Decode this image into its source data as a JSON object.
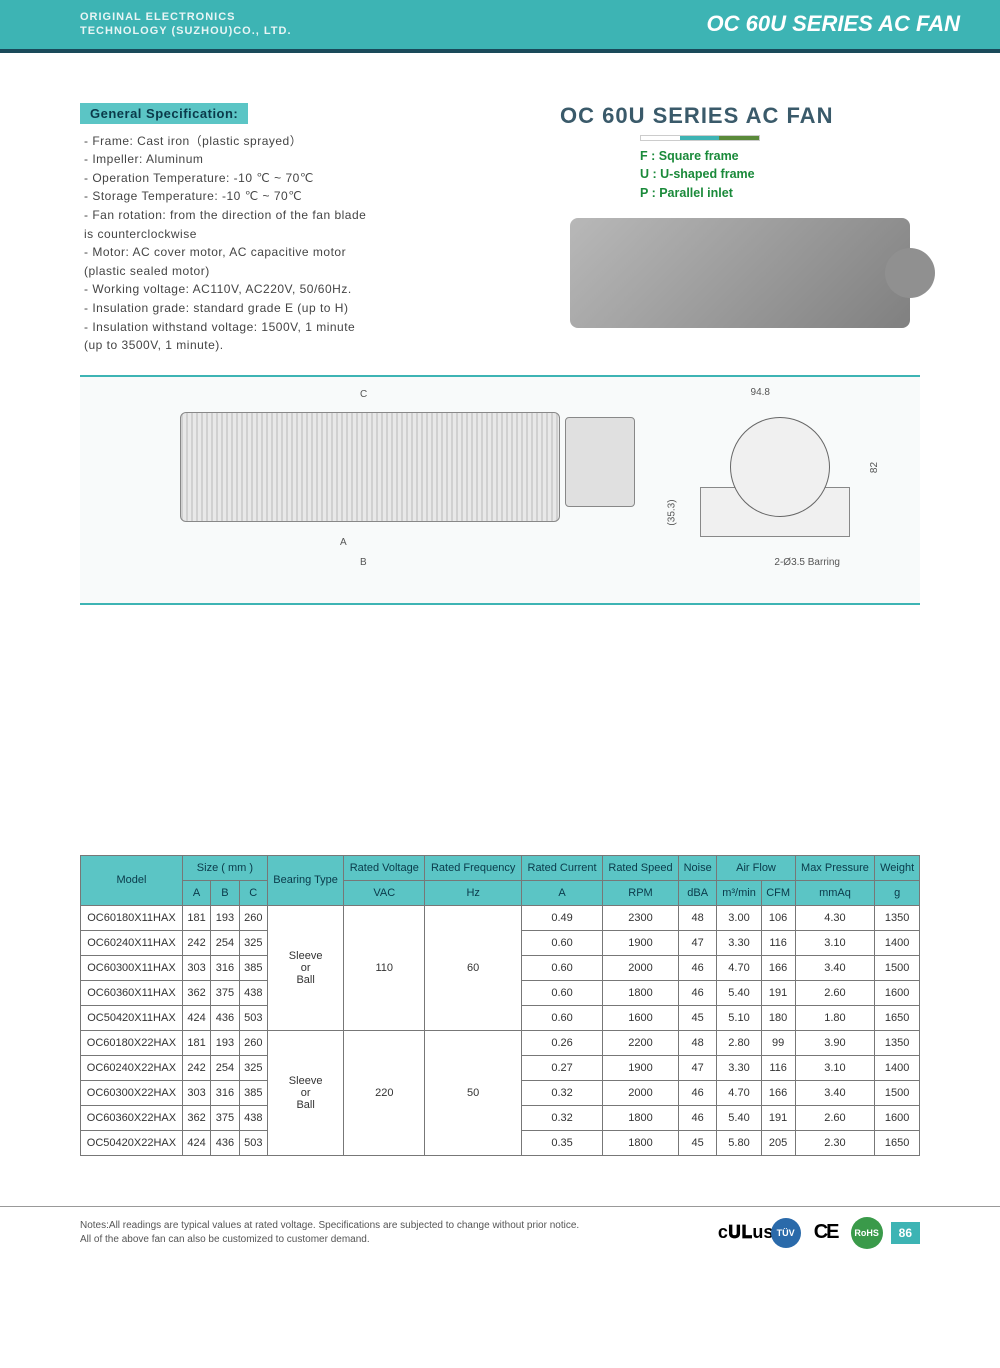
{
  "header": {
    "company_line1": "ORIGINAL ELECTRONICS",
    "company_line2": "TECHNOLOGY (SUZHOU)CO., LTD.",
    "title": "OC 60U SERIES AC FAN"
  },
  "spec": {
    "title": "General Specification:",
    "items": [
      "- Frame: Cast iron（plastic sprayed）",
      "- Impeller: Aluminum",
      "- Operation Temperature: -10 ℃ ~ 70℃",
      "- Storage Temperature: -10 ℃ ~ 70℃",
      "- Fan rotation: from the direction of the fan blade",
      "  is counterclockwise",
      "- Motor: AC cover motor, AC capacitive motor",
      "  (plastic sealed motor)",
      "- Working voltage: AC110V, AC220V, 50/60Hz.",
      "- Insulation grade: standard grade E (up to H)",
      "- Insulation withstand voltage: 1500V, 1 minute",
      "  (up to 3500V, 1 minute)."
    ]
  },
  "product": {
    "title": "OC 60U SERIES AC FAN",
    "frames": [
      "F : Square frame",
      "U : U-shaped frame",
      "P : Parallel inlet"
    ]
  },
  "diagram": {
    "dimA": "A",
    "dimB": "B",
    "dimC": "C",
    "dim948": "94.8",
    "dim82": "82",
    "dim353": "(35.3)",
    "barring": "2-Ø3.5 Barring"
  },
  "table": {
    "headers_row1": [
      "Model",
      "Size ( mm )",
      "Bearing Type",
      "Rated Voltage",
      "Rated Frequency",
      "Rated Current",
      "Rated Speed",
      "Noise",
      "Air Flow",
      "Max Pressure",
      "Weight"
    ],
    "headers_row2": [
      "A",
      "B",
      "C",
      "VAC",
      "Hz",
      "A",
      "RPM",
      "dBA",
      "m³/min",
      "CFM",
      "mmAq",
      "g"
    ],
    "bearing": "Sleeve\nor\nBall",
    "rows": [
      {
        "model": "OC60180X11HAX",
        "a": "181",
        "b": "193",
        "c": "260",
        "v": "110",
        "f": "60",
        "cur": "0.49",
        "rpm": "2300",
        "db": "48",
        "m3": "3.00",
        "cfm": "106",
        "mmaq": "4.30",
        "g": "1350"
      },
      {
        "model": "OC60240X11HAX",
        "a": "242",
        "b": "254",
        "c": "325",
        "v": "",
        "f": "",
        "cur": "0.60",
        "rpm": "1900",
        "db": "47",
        "m3": "3.30",
        "cfm": "116",
        "mmaq": "3.10",
        "g": "1400"
      },
      {
        "model": "OC60300X11HAX",
        "a": "303",
        "b": "316",
        "c": "385",
        "v": "",
        "f": "",
        "cur": "0.60",
        "rpm": "2000",
        "db": "46",
        "m3": "4.70",
        "cfm": "166",
        "mmaq": "3.40",
        "g": "1500"
      },
      {
        "model": "OC60360X11HAX",
        "a": "362",
        "b": "375",
        "c": "438",
        "v": "",
        "f": "",
        "cur": "0.60",
        "rpm": "1800",
        "db": "46",
        "m3": "5.40",
        "cfm": "191",
        "mmaq": "2.60",
        "g": "1600"
      },
      {
        "model": "OC50420X11HAX",
        "a": "424",
        "b": "436",
        "c": "503",
        "v": "",
        "f": "",
        "cur": "0.60",
        "rpm": "1600",
        "db": "45",
        "m3": "5.10",
        "cfm": "180",
        "mmaq": "1.80",
        "g": "1650"
      },
      {
        "model": "OC60180X22HAX",
        "a": "181",
        "b": "193",
        "c": "260",
        "v": "220",
        "f": "50",
        "cur": "0.26",
        "rpm": "2200",
        "db": "48",
        "m3": "2.80",
        "cfm": "99",
        "mmaq": "3.90",
        "g": "1350"
      },
      {
        "model": "OC60240X22HAX",
        "a": "242",
        "b": "254",
        "c": "325",
        "v": "",
        "f": "",
        "cur": "0.27",
        "rpm": "1900",
        "db": "47",
        "m3": "3.30",
        "cfm": "116",
        "mmaq": "3.10",
        "g": "1400"
      },
      {
        "model": "OC60300X22HAX",
        "a": "303",
        "b": "316",
        "c": "385",
        "v": "",
        "f": "",
        "cur": "0.32",
        "rpm": "2000",
        "db": "46",
        "m3": "4.70",
        "cfm": "166",
        "mmaq": "3.40",
        "g": "1500"
      },
      {
        "model": "OC60360X22HAX",
        "a": "362",
        "b": "375",
        "c": "438",
        "v": "",
        "f": "",
        "cur": "0.32",
        "rpm": "1800",
        "db": "46",
        "m3": "5.40",
        "cfm": "191",
        "mmaq": "2.60",
        "g": "1600"
      },
      {
        "model": "OC50420X22HAX",
        "a": "424",
        "b": "436",
        "c": "503",
        "v": "",
        "f": "",
        "cur": "0.35",
        "rpm": "1800",
        "db": "45",
        "m3": "5.80",
        "cfm": "205",
        "mmaq": "2.30",
        "g": "1650"
      }
    ]
  },
  "footer": {
    "note1": "Notes:All readings are typical values at rated voltage.   Specifications are subjected to change without prior notice.",
    "note2": "All of the above fan can also be customized to customer demand.",
    "certs": {
      "ul": "c𝐔𝐋us",
      "tuv": "TÜV",
      "ce": "CE",
      "rohs": "RoHS"
    },
    "page": "86"
  }
}
